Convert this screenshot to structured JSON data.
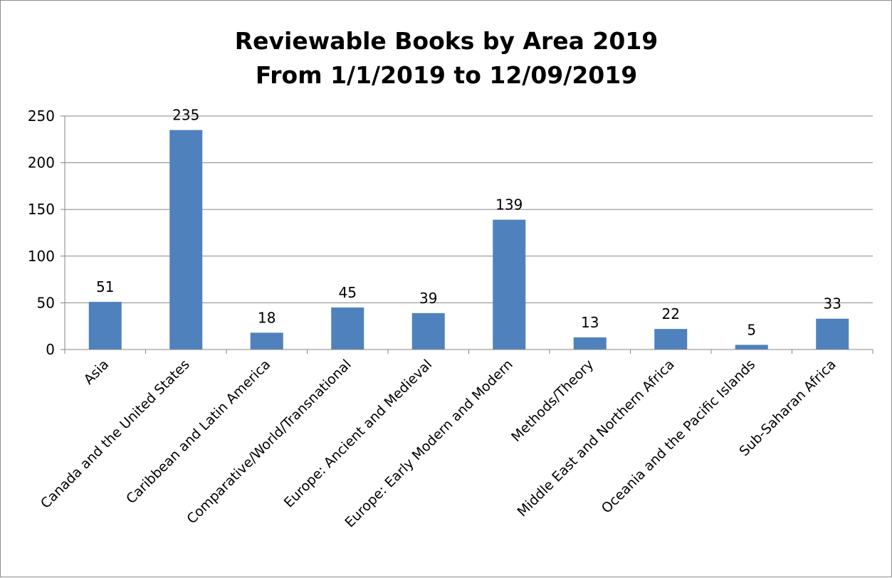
{
  "chart_data": {
    "type": "bar",
    "title": "Reviewable Books by Area 2019",
    "subtitle": "From 1/1/2019 to 12/09/2019",
    "xlabel": "",
    "ylabel": "",
    "categories": [
      "Asia",
      "Canada and the United States",
      "Caribbean and Latin America",
      "Comparative/World/Transnational",
      "Europe: Ancient and Medieval",
      "Europe: Early Modern and Modern",
      "Methods/Theory",
      "Middle East and Northern Africa",
      "Oceania and the Pacific Islands",
      "Sub-Saharan Africa"
    ],
    "values": [
      51,
      235,
      18,
      45,
      39,
      139,
      13,
      22,
      5,
      33
    ],
    "ylim": [
      0,
      250
    ],
    "yticks": [
      0,
      50,
      100,
      150,
      200,
      250
    ],
    "grid": true,
    "legend": "none",
    "data_labels": true,
    "bar_color": "#4f81bd",
    "grid_color": "#868686"
  }
}
